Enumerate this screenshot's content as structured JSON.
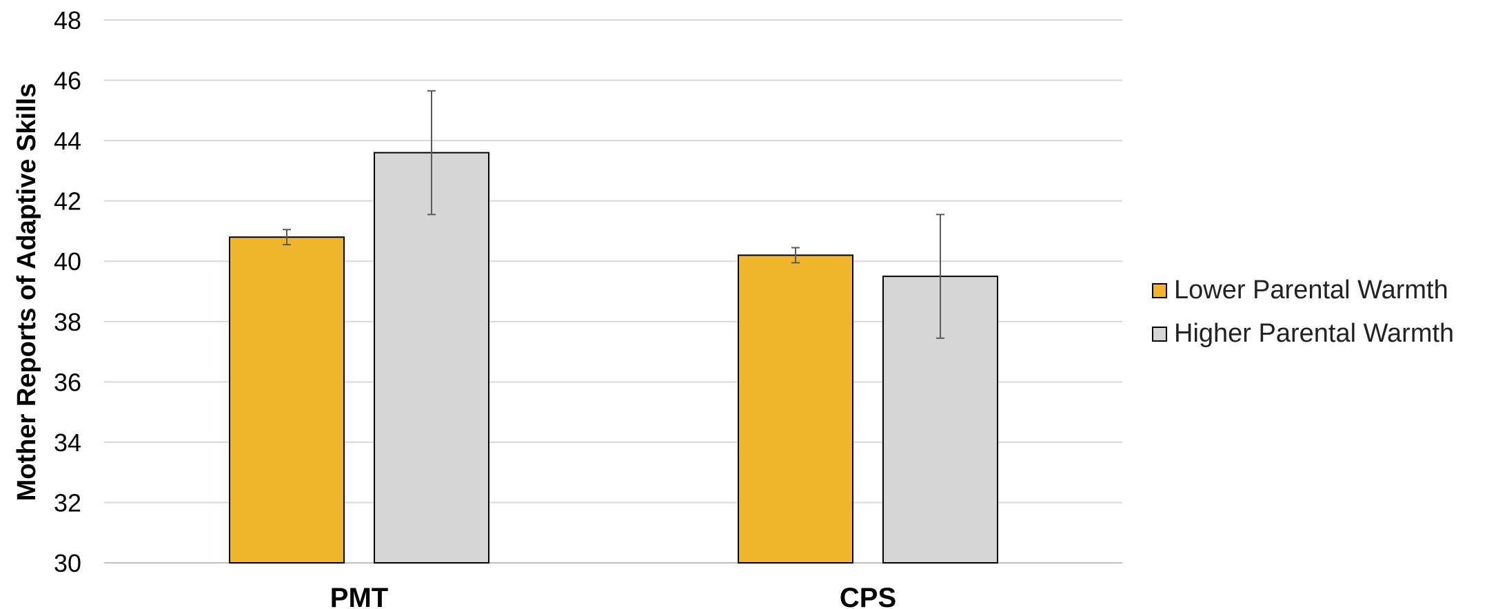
{
  "chart_data": {
    "type": "bar",
    "title": "",
    "xlabel": "",
    "ylabel": "Mother Reports of Adaptive Skills",
    "categories": [
      "PMT",
      "CPS"
    ],
    "ylim": [
      30,
      48
    ],
    "yticks": [
      30,
      32,
      34,
      36,
      38,
      40,
      42,
      44,
      46,
      48
    ],
    "grid": true,
    "legend_position": "right",
    "error_bars": true,
    "series": [
      {
        "name": "Lower Parental Warmth",
        "color": "#F0B52C",
        "values": [
          40.8,
          40.2
        ],
        "error": [
          0.25,
          0.25
        ]
      },
      {
        "name": "Higher Parental Warmth",
        "color": "#D6D6D6",
        "values": [
          43.6,
          39.5
        ],
        "error": [
          2.05,
          2.05
        ]
      }
    ]
  }
}
